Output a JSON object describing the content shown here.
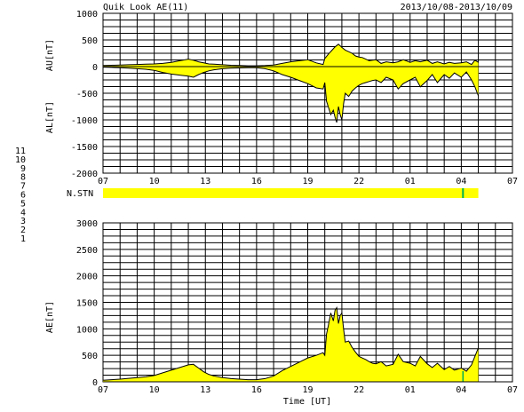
{
  "header": {
    "title": "Quik Look AE(11)",
    "date_range": "2013/10/08-2013/10/09"
  },
  "station_legend": [
    {
      "label": "11",
      "color": "#00e5e5"
    },
    {
      "label": "10",
      "color": "#e500e5"
    },
    {
      "label": "9",
      "color": "#3a3ad8"
    },
    {
      "label": "8",
      "color": "#e5e500"
    },
    {
      "label": "7",
      "color": "#00c8c8"
    },
    {
      "label": "6",
      "color": "#e51010"
    },
    {
      "label": "5",
      "color": "#b0b0b0"
    },
    {
      "label": "4",
      "color": "#b0b0b0"
    },
    {
      "label": "3",
      "color": "#10b010"
    },
    {
      "label": "2",
      "color": "#c81090"
    },
    {
      "label": "1",
      "color": "#2020c0"
    }
  ],
  "colors": {
    "fill": "#ffff00",
    "line": "#000000",
    "marker": "#00b050"
  },
  "chart_data": [
    {
      "type": "area",
      "ylabel_top": "AU[nT]",
      "ylabel_bottom": "AL[nT]",
      "x_ticks": [
        "07",
        "10",
        "13",
        "16",
        "19",
        "22",
        "01",
        "04",
        "07"
      ],
      "x_range_hours": [
        0,
        24
      ],
      "ylim": [
        -2000,
        1000
      ],
      "y_ticks": [
        1000,
        500,
        0,
        -500,
        -1000,
        -1500,
        -2000
      ],
      "grid": true,
      "au": {
        "x": [
          0,
          0.5,
          1,
          1.5,
          2,
          2.5,
          3,
          3.5,
          4,
          4.5,
          5,
          5.3,
          5.6,
          5.9,
          6.2,
          6.5,
          7,
          7.5,
          8,
          8.5,
          9,
          9.5,
          10,
          10.5,
          11,
          11.5,
          12,
          12.5,
          12.9,
          13.0,
          13.2,
          13.4,
          13.6,
          13.8,
          14,
          14.2,
          14.4,
          14.6,
          14.8,
          15,
          15.2,
          15.4,
          15.6,
          15.8,
          16,
          16.3,
          16.6,
          17,
          17.3,
          17.6,
          18,
          18.3,
          18.6,
          19,
          19.3,
          19.6,
          20,
          20.3,
          20.6,
          21,
          21.3,
          21.6,
          21.8,
          22
        ],
        "y": [
          20,
          25,
          30,
          35,
          40,
          45,
          50,
          60,
          80,
          110,
          140,
          120,
          90,
          70,
          50,
          45,
          35,
          25,
          20,
          15,
          15,
          20,
          30,
          60,
          90,
          110,
          130,
          70,
          40,
          150,
          230,
          300,
          370,
          420,
          360,
          310,
          280,
          250,
          200,
          180,
          170,
          140,
          110,
          120,
          130,
          60,
          90,
          70,
          90,
          130,
          80,
          110,
          90,
          120,
          60,
          90,
          50,
          80,
          60,
          70,
          90,
          40,
          120,
          80
        ]
      },
      "al": {
        "x": [
          0,
          0.5,
          1,
          1.5,
          2,
          2.5,
          3,
          3.5,
          4,
          4.5,
          5,
          5.3,
          5.6,
          5.9,
          6.2,
          6.5,
          7,
          7.5,
          8,
          8.5,
          9,
          9.5,
          10,
          10.5,
          11,
          11.5,
          12,
          12.5,
          12.9,
          13.0,
          13.1,
          13.2,
          13.35,
          13.5,
          13.6,
          13.7,
          13.8,
          13.9,
          14,
          14.1,
          14.2,
          14.4,
          14.6,
          14.8,
          15,
          15.2,
          15.4,
          15.6,
          15.8,
          16,
          16.3,
          16.6,
          17,
          17.3,
          17.6,
          18,
          18.3,
          18.6,
          19,
          19.3,
          19.6,
          20,
          20.3,
          20.6,
          21,
          21.3,
          21.6,
          21.8,
          22
        ],
        "y": [
          -10,
          -15,
          -20,
          -30,
          -40,
          -50,
          -70,
          -110,
          -140,
          -160,
          -180,
          -200,
          -150,
          -110,
          -80,
          -60,
          -40,
          -30,
          -25,
          -20,
          -20,
          -40,
          -80,
          -150,
          -200,
          -260,
          -320,
          -400,
          -420,
          -300,
          -650,
          -750,
          -900,
          -820,
          -950,
          -1050,
          -750,
          -900,
          -1000,
          -700,
          -500,
          -560,
          -460,
          -400,
          -350,
          -320,
          -300,
          -280,
          -260,
          -250,
          -300,
          -200,
          -250,
          -420,
          -320,
          -250,
          -200,
          -380,
          -260,
          -150,
          -300,
          -150,
          -220,
          -120,
          -200,
          -100,
          -250,
          -380,
          -550
        ]
      }
    },
    {
      "type": "bar",
      "label": "N.STN",
      "x_range_hours": [
        0,
        22
      ],
      "marker_hour": 21.1
    },
    {
      "type": "area",
      "ylabel": "AE[nT]",
      "xlabel": "Time [UT]",
      "x_ticks": [
        "07",
        "10",
        "13",
        "16",
        "19",
        "22",
        "01",
        "04",
        "07"
      ],
      "x_range_hours": [
        0,
        24
      ],
      "ylim": [
        0,
        3000
      ],
      "y_ticks": [
        3000,
        2500,
        2000,
        1500,
        1000,
        500,
        0
      ],
      "grid": true,
      "series": [
        {
          "x": [
            0,
            0.5,
            1,
            1.5,
            2,
            2.5,
            3,
            3.5,
            4,
            4.5,
            5,
            5.3,
            5.6,
            5.9,
            6.2,
            6.5,
            7,
            7.5,
            8,
            8.5,
            9,
            9.5,
            10,
            10.5,
            11,
            11.5,
            12,
            12.5,
            12.9,
            13.0,
            13.1,
            13.2,
            13.35,
            13.5,
            13.6,
            13.7,
            13.8,
            13.9,
            14,
            14.1,
            14.2,
            14.4,
            14.6,
            14.8,
            15,
            15.2,
            15.4,
            15.6,
            15.8,
            16,
            16.3,
            16.6,
            17,
            17.3,
            17.6,
            18,
            18.3,
            18.6,
            19,
            19.3,
            19.6,
            20,
            20.3,
            20.6,
            21,
            21.3,
            21.6,
            21.8,
            22
          ],
          "y": [
            30,
            40,
            50,
            65,
            80,
            95,
            120,
            170,
            220,
            270,
            320,
            330,
            260,
            190,
            140,
            110,
            80,
            60,
            50,
            40,
            40,
            60,
            110,
            210,
            290,
            370,
            450,
            500,
            550,
            500,
            900,
            1050,
            1300,
            1150,
            1350,
            1400,
            1100,
            1250,
            1300,
            1000,
            750,
            770,
            650,
            560,
            480,
            450,
            420,
            380,
            350,
            340,
            380,
            300,
            330,
            520,
            380,
            350,
            300,
            480,
            340,
            270,
            350,
            230,
            290,
            220,
            260,
            200,
            320,
            480,
            640
          ]
        }
      ]
    }
  ]
}
